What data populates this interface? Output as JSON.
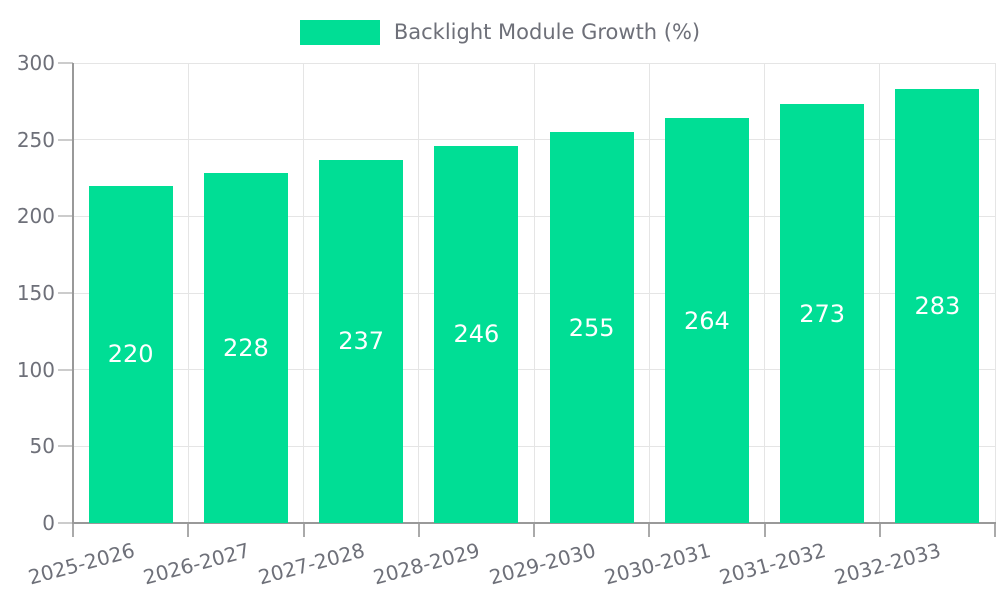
{
  "legend": {
    "label": "Backlight Module Growth (%)"
  },
  "colors": {
    "bar": "#00de95",
    "value_label": "#ffffff",
    "axis_label": "#6e7079",
    "grid": "#e5e5e5",
    "axis_line": "#999999"
  },
  "chart_data": {
    "type": "bar",
    "title": "Backlight Module Growth (%)",
    "xlabel": "",
    "ylabel": "",
    "categories": [
      "2025-2026",
      "2026-2027",
      "2027-2028",
      "2028-2029",
      "2029-2030",
      "2030-2031",
      "2031-2032",
      "2032-2033"
    ],
    "series": [
      {
        "name": "Backlight Module Growth (%)",
        "values": [
          220,
          228,
          237,
          246,
          255,
          264,
          273,
          283
        ]
      }
    ],
    "value_labels": [
      "220",
      "228",
      "237",
      "246",
      "255",
      "264",
      "273",
      "283"
    ],
    "ylim": [
      0,
      300
    ],
    "yticks": [
      0,
      50,
      100,
      150,
      200,
      250,
      300
    ],
    "grid": true,
    "legend_position": "top-center",
    "bar_color": "#00de95"
  }
}
